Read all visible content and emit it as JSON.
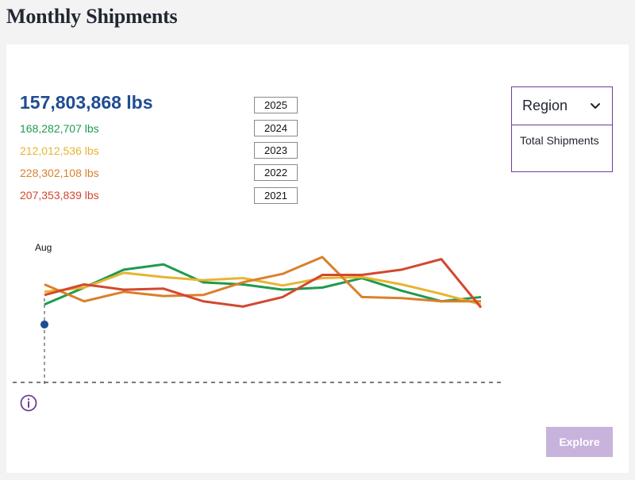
{
  "page": {
    "title": "Monthly Shipments"
  },
  "summary": {
    "total": "157,803,868 lbs",
    "series_totals": [
      {
        "text": "168,282,707 lbs",
        "color": "#1f9a4f"
      },
      {
        "text": "212,012,536 lbs",
        "color": "#e8b431"
      },
      {
        "text": "228,302,108 lbs",
        "color": "#d9802c"
      },
      {
        "text": "207,353,839 lbs",
        "color": "#d3482f"
      }
    ]
  },
  "year_buttons": [
    "2025",
    "2024",
    "2023",
    "2022",
    "2021"
  ],
  "region": {
    "label": "Region",
    "options": [
      "Total Shipments"
    ]
  },
  "explore": {
    "label": "Explore"
  },
  "icons": {
    "dropdown": "chevron-down-icon",
    "info": "info-icon"
  },
  "colors": {
    "accent": "#6e3d97",
    "primary": "#1f4c93"
  },
  "chart_data": {
    "type": "line",
    "grid": false,
    "annotations": [
      "Aug"
    ],
    "y_baseline_dashed": true,
    "series": [
      {
        "color": "#1f4c93",
        "values": [
          155
        ]
      },
      {
        "color": "#1f9a4f",
        "values": [
          174,
          190,
          207,
          212,
          195,
          193,
          188,
          190,
          199,
          187,
          177,
          181
        ]
      },
      {
        "color": "#e8b431",
        "values": [
          186,
          190,
          204,
          200,
          197,
          199,
          192,
          199,
          200,
          193,
          184,
          174
        ]
      },
      {
        "color": "#d9802c",
        "values": [
          193,
          177,
          186,
          182,
          183,
          195,
          203,
          219,
          181,
          180,
          177,
          177
        ]
      },
      {
        "color": "#d3482f",
        "values": [
          183,
          193,
          188,
          189,
          177,
          172,
          181,
          202,
          202,
          207,
          217,
          171
        ]
      }
    ],
    "ylim": [
      100,
      225
    ]
  }
}
